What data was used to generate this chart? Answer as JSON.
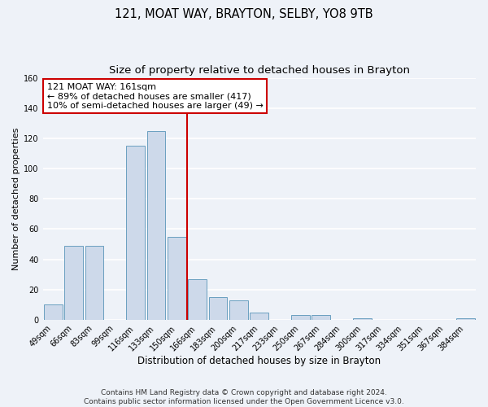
{
  "title": "121, MOAT WAY, BRAYTON, SELBY, YO8 9TB",
  "subtitle": "Size of property relative to detached houses in Brayton",
  "xlabel": "Distribution of detached houses by size in Brayton",
  "ylabel": "Number of detached properties",
  "bar_labels": [
    "49sqm",
    "66sqm",
    "83sqm",
    "99sqm",
    "116sqm",
    "133sqm",
    "150sqm",
    "166sqm",
    "183sqm",
    "200sqm",
    "217sqm",
    "233sqm",
    "250sqm",
    "267sqm",
    "284sqm",
    "300sqm",
    "317sqm",
    "334sqm",
    "351sqm",
    "367sqm",
    "384sqm"
  ],
  "bar_values": [
    10,
    49,
    49,
    0,
    115,
    125,
    55,
    27,
    15,
    13,
    5,
    0,
    3,
    3,
    0,
    1,
    0,
    0,
    0,
    0,
    1
  ],
  "bar_color": "#cdd9ea",
  "bar_edge_color": "#6a9fc0",
  "vline_color": "#cc0000",
  "vline_index": 7,
  "annotation_line1": "121 MOAT WAY: 161sqm",
  "annotation_line2": "← 89% of detached houses are smaller (417)",
  "annotation_line3": "10% of semi-detached houses are larger (49) →",
  "annotation_box_color": "#ffffff",
  "annotation_box_edge": "#cc0000",
  "footer_line1": "Contains HM Land Registry data © Crown copyright and database right 2024.",
  "footer_line2": "Contains public sector information licensed under the Open Government Licence v3.0.",
  "ylim": [
    0,
    160
  ],
  "yticks": [
    0,
    20,
    40,
    60,
    80,
    100,
    120,
    140,
    160
  ],
  "background_color": "#eef2f8",
  "grid_color": "#ffffff",
  "title_fontsize": 10.5,
  "subtitle_fontsize": 9.5,
  "xlabel_fontsize": 8.5,
  "ylabel_fontsize": 8,
  "tick_fontsize": 7,
  "footer_fontsize": 6.5,
  "annotation_fontsize": 8
}
